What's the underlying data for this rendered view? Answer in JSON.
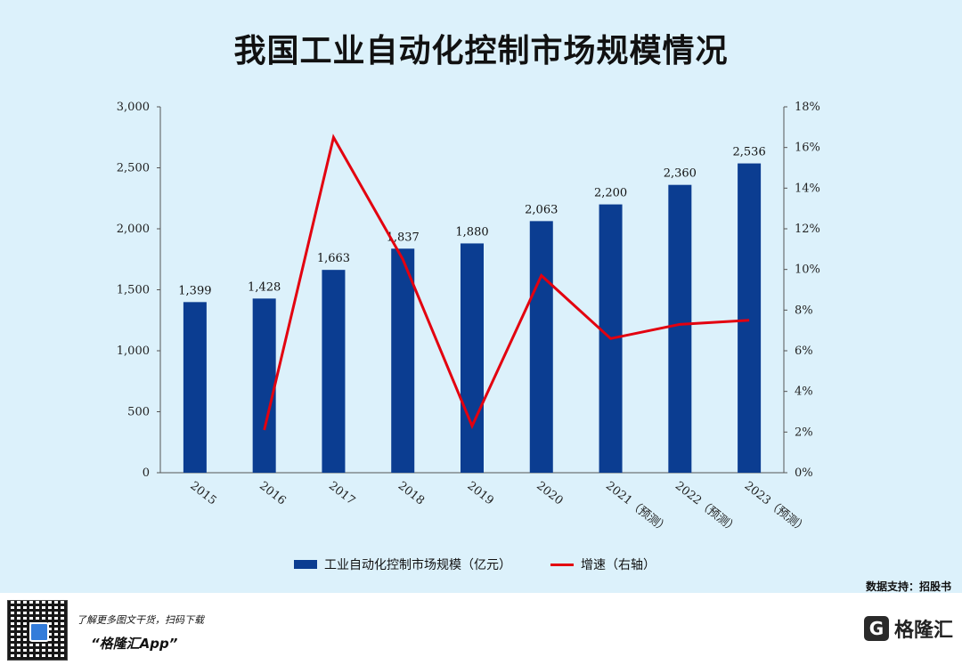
{
  "title": "我国工业自动化控制市场规模情况",
  "chart_data": {
    "type": "bar",
    "title": "我国工业自动化控制市场规模情况",
    "categories": [
      "2015",
      "2016",
      "2017",
      "2018",
      "2019",
      "2020",
      "2021（预测）",
      "2022（预测）",
      "2023（预测）"
    ],
    "series": [
      {
        "name": "工业自动化控制市场规模（亿元）",
        "type": "bar",
        "axis": "left",
        "values": [
          1399,
          1428,
          1663,
          1837,
          1880,
          2063,
          2200,
          2360,
          2536
        ],
        "labels": [
          "1,399",
          "1,428",
          "1,663",
          "1,837",
          "1,880",
          "2,063",
          "2,200",
          "2,360",
          "2,536"
        ],
        "color": "#0b3d91"
      },
      {
        "name": "增速（右轴）",
        "type": "line",
        "axis": "right",
        "values": [
          null,
          2.1,
          16.5,
          10.5,
          2.3,
          9.7,
          6.6,
          7.3,
          7.5
        ],
        "color": "#e3000f"
      }
    ],
    "y_left": {
      "min": 0,
      "max": 3000,
      "ticks": [
        "0",
        "500",
        "1,000",
        "1,500",
        "2,000",
        "2,500",
        "3,000"
      ]
    },
    "y_right": {
      "min": 0,
      "max": 18,
      "ticks": [
        "0%",
        "2%",
        "4%",
        "6%",
        "8%",
        "10%",
        "12%",
        "14%",
        "16%",
        "18%"
      ]
    },
    "legend_position": "bottom",
    "grid": false
  },
  "source": "数据支持：招股书",
  "footer": {
    "promo_line": "了解更多图文干货，扫码下载",
    "app_name": "“格隆汇App”",
    "brand_logo": "G",
    "brand_name": "格隆汇"
  }
}
